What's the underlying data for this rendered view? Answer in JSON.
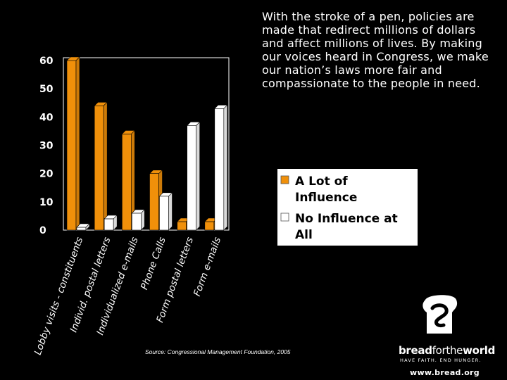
{
  "quote": {
    "text": "With the stroke of a pen, policies are made that redirect millions of dollars and affect millions of lives. By making our voices heard in Congress, we make our nation’s laws more fair and compassionate to the people in need."
  },
  "source": {
    "text": "Source: Congressional Management Foundation, 2005"
  },
  "logo": {
    "name_bold_a": "bread",
    "name_thin": "forthe",
    "name_bold_b": "world",
    "tagline": "HAVE FAITH. END HUNGER.",
    "url": "www.bread.org",
    "icon": "bread-loaf-icon"
  },
  "colors": {
    "background": "#000000",
    "series_a": "#f0900a",
    "series_b": "#ffffff"
  },
  "chart_data": {
    "type": "bar",
    "style": "3d-clustered",
    "title": "",
    "xlabel": "",
    "ylabel": "",
    "ylim": [
      0,
      60
    ],
    "yticks": [
      0,
      10,
      20,
      30,
      40,
      50,
      60
    ],
    "grid": false,
    "legend_position": "right",
    "categories": [
      "Lobby visits - constituents",
      "Individ. postal letters",
      "Individualized e-mails",
      "Phone Calls",
      "Form postal letters",
      "Form e-mails"
    ],
    "series": [
      {
        "name": "A Lot of Influence",
        "values": [
          60,
          44,
          34,
          20,
          3,
          3
        ]
      },
      {
        "name": "No Influence at All",
        "values": [
          1,
          4,
          6,
          12,
          37,
          43
        ]
      }
    ],
    "legend": [
      {
        "line1": "A Lot of",
        "line2": "Influence"
      },
      {
        "line1": "No Influence at",
        "line2": "All"
      }
    ]
  }
}
